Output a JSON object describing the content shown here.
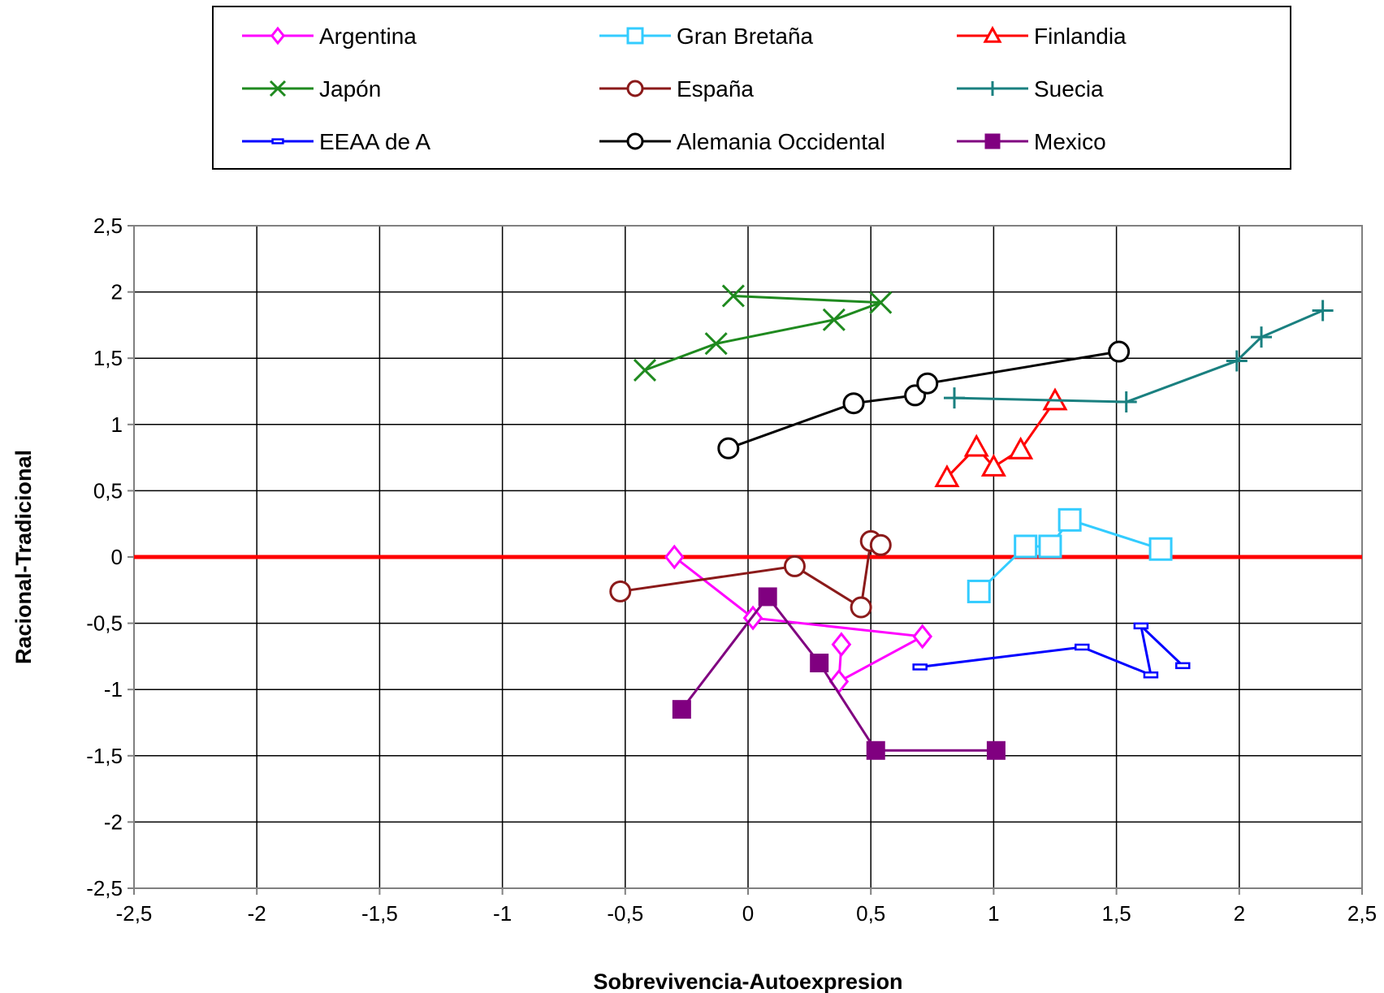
{
  "chart_data": {
    "type": "line",
    "title": "",
    "xlabel": "Sobrevivencia-Autoexpresion",
    "ylabel": "Racional-Tradicional",
    "xlim": [
      -2.5,
      2.5
    ],
    "ylim": [
      -2.5,
      2.5
    ],
    "x_ticks": [
      "-2,5",
      "-2",
      "-1,5",
      "-1",
      "-0,5",
      "0",
      "0,5",
      "1",
      "1,5",
      "2",
      "2,5"
    ],
    "y_ticks": [
      "2,5",
      "2",
      "1,5",
      "1",
      "0,5",
      "0",
      "-0,5",
      "-1",
      "-1,5",
      "-2",
      "-2,5"
    ],
    "grid": true,
    "legend_position": "top",
    "reference_line": {
      "y": 0,
      "color": "#ff0000"
    },
    "series": [
      {
        "name": "Argentina",
        "color": "#ff00ff",
        "marker": "diamond",
        "points": [
          [
            -0.3,
            0.0
          ],
          [
            0.02,
            -0.46
          ],
          [
            0.71,
            -0.6
          ],
          [
            0.37,
            -0.94
          ],
          [
            0.38,
            -0.66
          ]
        ]
      },
      {
        "name": "Gran Bretaña",
        "color": "#33ccff",
        "marker": "square-open",
        "points": [
          [
            0.94,
            -0.26
          ],
          [
            1.13,
            0.08
          ],
          [
            1.23,
            0.08
          ],
          [
            1.31,
            0.28
          ],
          [
            1.68,
            0.06
          ]
        ]
      },
      {
        "name": "Finlandia",
        "color": "#ff0000",
        "marker": "triangle",
        "points": [
          [
            0.81,
            0.6
          ],
          [
            0.93,
            0.83
          ],
          [
            1.0,
            0.68
          ],
          [
            1.11,
            0.81
          ],
          [
            1.25,
            1.18
          ]
        ]
      },
      {
        "name": "Japón",
        "color": "#1f8a1f",
        "marker": "x",
        "points": [
          [
            -0.42,
            1.41
          ],
          [
            -0.13,
            1.61
          ],
          [
            0.35,
            1.79
          ],
          [
            0.54,
            1.92
          ],
          [
            -0.06,
            1.97
          ]
        ]
      },
      {
        "name": "España",
        "color": "#8b1a1a",
        "marker": "circle",
        "points": [
          [
            -0.52,
            -0.26
          ],
          [
            0.19,
            -0.07
          ],
          [
            0.46,
            -0.38
          ],
          [
            0.5,
            0.12
          ],
          [
            0.54,
            0.09
          ]
        ]
      },
      {
        "name": "Suecia",
        "color": "#1a8080",
        "marker": "plus",
        "points": [
          [
            0.84,
            1.2
          ],
          [
            1.54,
            1.17
          ],
          [
            1.99,
            1.48
          ],
          [
            2.09,
            1.66
          ],
          [
            2.34,
            1.86
          ]
        ]
      },
      {
        "name": "EEAA de A",
        "color": "#0000ff",
        "marker": "dash",
        "points": [
          [
            0.7,
            -0.83
          ],
          [
            1.36,
            -0.68
          ],
          [
            1.64,
            -0.89
          ],
          [
            1.6,
            -0.52
          ],
          [
            1.77,
            -0.82
          ]
        ]
      },
      {
        "name": "Alemania Occidental",
        "color": "#000000",
        "marker": "circle",
        "points": [
          [
            -0.08,
            0.82
          ],
          [
            0.43,
            1.16
          ],
          [
            0.68,
            1.22
          ],
          [
            0.73,
            1.31
          ],
          [
            1.51,
            1.55
          ]
        ]
      },
      {
        "name": "Mexico",
        "color": "#800080",
        "marker": "square-filled",
        "points": [
          [
            -0.27,
            -1.15
          ],
          [
            0.08,
            -0.3
          ],
          [
            0.29,
            -0.8
          ],
          [
            0.52,
            -1.46
          ],
          [
            1.01,
            -1.46
          ]
        ]
      }
    ]
  }
}
